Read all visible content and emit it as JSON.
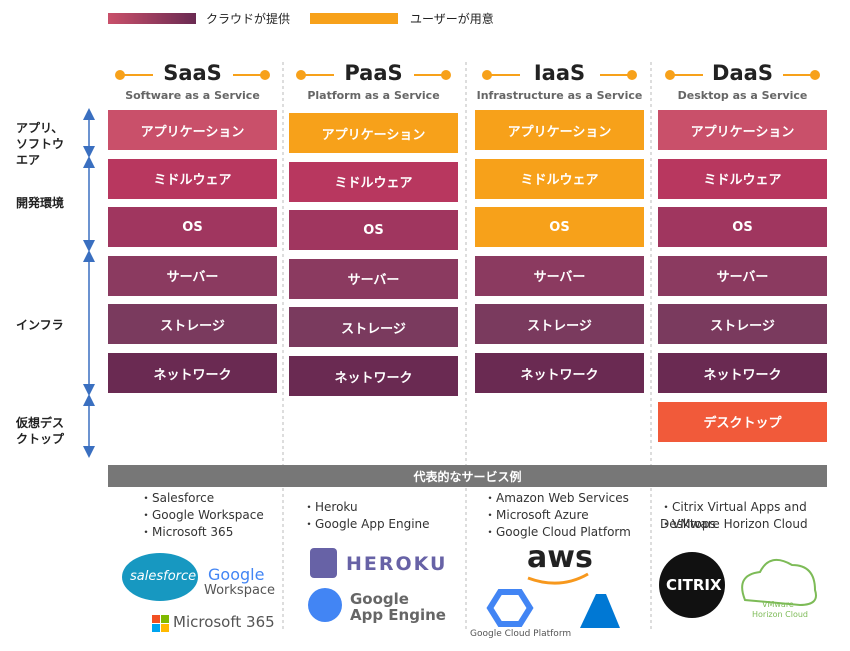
{
  "legend": [
    {
      "label": "クラウドが提供"
    },
    {
      "label": "ユーザーが用意"
    }
  ],
  "side_labels": [
    {
      "lines": [
        "アプリ、",
        "ソフトウ",
        "エア"
      ]
    },
    {
      "lines": [
        "開発環境"
      ]
    },
    {
      "lines": [
        "インフラ"
      ]
    },
    {
      "lines": [
        "仮想デス",
        "クトップ"
      ]
    }
  ],
  "columns": [
    {
      "title": "SaaS",
      "subtitle": "Software as a Service",
      "layers": [
        {
          "label": "アプリケーション",
          "color": "#c9506a"
        },
        {
          "label": "ミドルウェア",
          "color": "#b8375f"
        },
        {
          "label": "OS",
          "color": "#a0365f"
        },
        {
          "label": "サーバー",
          "color": "#8b3a60"
        },
        {
          "label": "ストレージ",
          "color": "#7a3a5e"
        },
        {
          "label": "ネットワーク",
          "color": "#6a2a52"
        }
      ],
      "examples": [
        "・Salesforce",
        "・Google Workspace",
        "・Microsoft 365"
      ],
      "logos": [
        "salesforce",
        "Google",
        "Workspace",
        "Microsoft 365"
      ]
    },
    {
      "title": "PaaS",
      "subtitle": "Platform as a Service",
      "layers": [
        {
          "label": "アプリケーション",
          "color": "#f7a11a"
        },
        {
          "label": "ミドルウェア",
          "color": "#b8375f"
        },
        {
          "label": "OS",
          "color": "#a0365f"
        },
        {
          "label": "サーバー",
          "color": "#8b3a60"
        },
        {
          "label": "ストレージ",
          "color": "#7a3a5e"
        },
        {
          "label": "ネットワーク",
          "color": "#6a2a52"
        }
      ],
      "examples": [
        "・Heroku",
        "・Google App Engine"
      ],
      "logos": [
        "HEROKU",
        "Google",
        "App Engine"
      ]
    },
    {
      "title": "IaaS",
      "subtitle": "Infrastructure as a Service",
      "layers": [
        {
          "label": "アプリケーション",
          "color": "#f7a11a"
        },
        {
          "label": "ミドルウェア",
          "color": "#f7a11a"
        },
        {
          "label": "OS",
          "color": "#f7a11a"
        },
        {
          "label": "サーバー",
          "color": "#8b3a60"
        },
        {
          "label": "ストレージ",
          "color": "#7a3a5e"
        },
        {
          "label": "ネットワーク",
          "color": "#6a2a52"
        }
      ],
      "examples": [
        "・Amazon Web Services",
        "・Microsoft Azure",
        "・Google Cloud Platform"
      ],
      "logos": [
        "aws",
        "Google Cloud Platform"
      ]
    },
    {
      "title": "DaaS",
      "subtitle": "Desktop as a Service",
      "layers": [
        {
          "label": "アプリケーション",
          "color": "#c9506a"
        },
        {
          "label": "ミドルウェア",
          "color": "#b8375f"
        },
        {
          "label": "OS",
          "color": "#a0365f"
        },
        {
          "label": "サーバー",
          "color": "#8b3a60"
        },
        {
          "label": "ストレージ",
          "color": "#7a3a5e"
        },
        {
          "label": "ネットワーク",
          "color": "#6a2a52"
        },
        {
          "label": "デスクトップ",
          "color": "#f15a3a"
        }
      ],
      "examples": [
        "・Citrix Virtual Apps and Desktops",
        "・VMware Horizon Cloud"
      ],
      "logos": [
        "CITRIX",
        "VMware",
        "Horizon Cloud"
      ]
    }
  ],
  "examples_title": "代表的なサービス例"
}
